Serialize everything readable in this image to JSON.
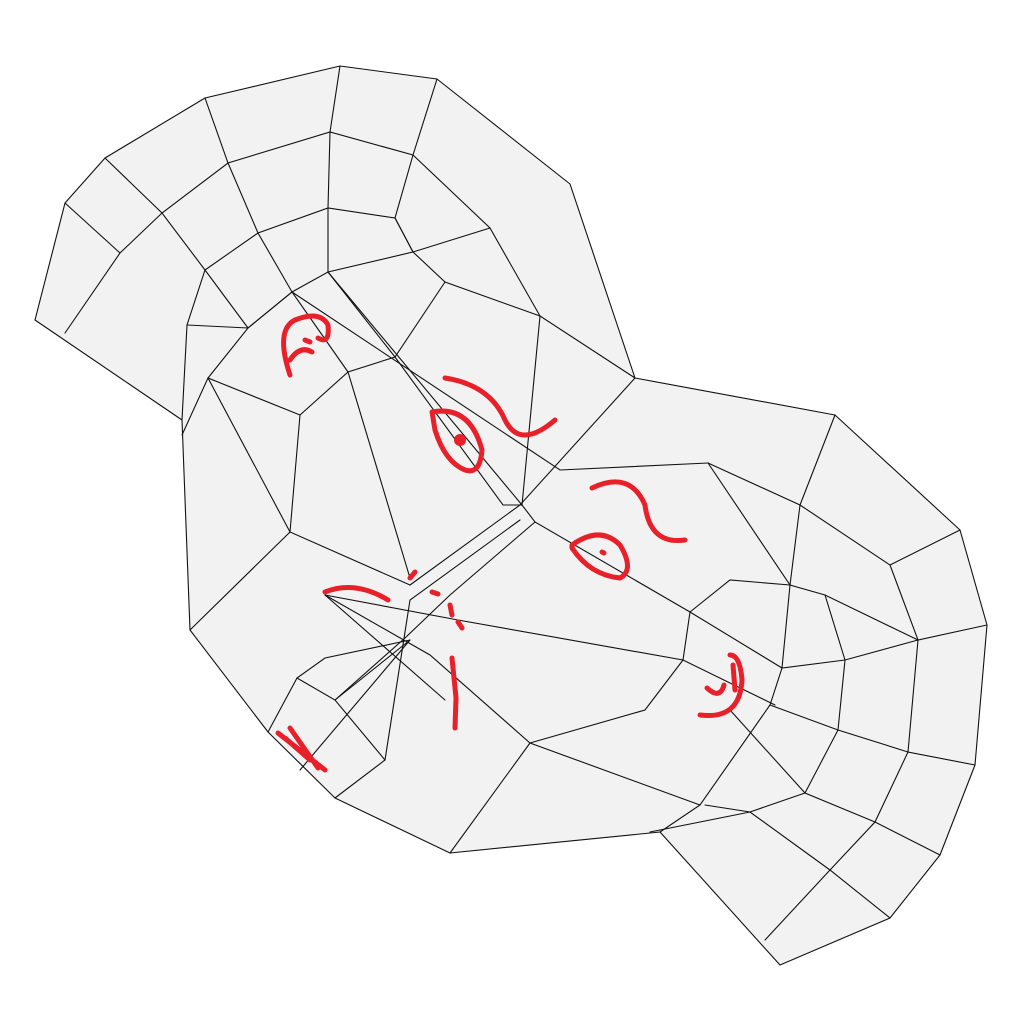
{
  "image": {
    "subject": "wireframe-face-mesh-with-red-annotations",
    "colors": {
      "background": "#ffffff",
      "mesh_fill": "#f2f2f2",
      "mesh_edge": "#111111",
      "annotation": "#e8202a"
    }
  }
}
